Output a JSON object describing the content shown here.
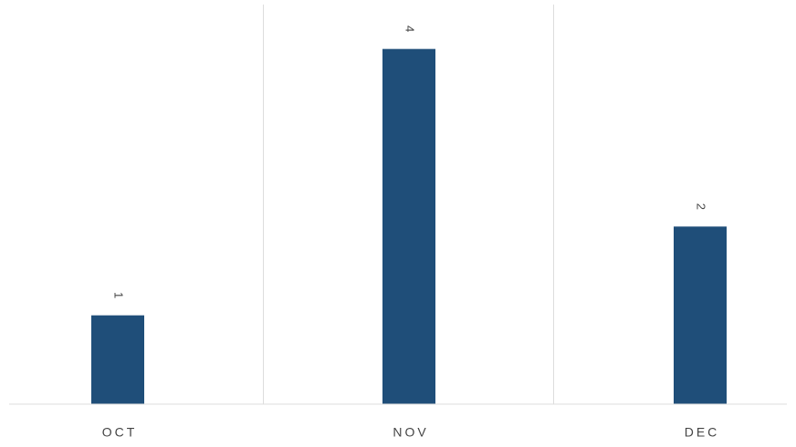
{
  "chart_data": {
    "type": "bar",
    "categories": [
      "OCT",
      "NOV",
      "DEC"
    ],
    "values": [
      1,
      4,
      2
    ],
    "color": "#1f4e79",
    "ylim": [
      0,
      4.5
    ]
  }
}
